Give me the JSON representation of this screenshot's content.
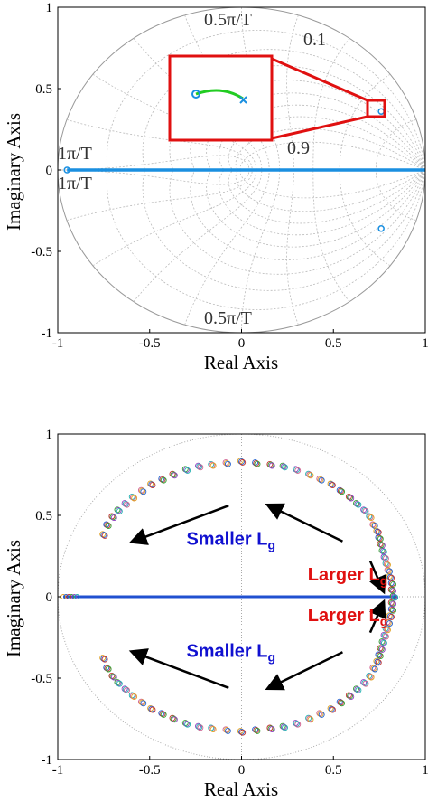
{
  "chart_data": [
    {
      "type": "scatter",
      "xlabel": "Real Axis",
      "ylabel": "Imaginary Axis",
      "xlim": [
        -1,
        1
      ],
      "ylim": [
        -1,
        1
      ],
      "xticks": [
        "-1",
        "-0.5",
        "0",
        "0.5",
        "1"
      ],
      "yticks": [
        "1",
        "0.5",
        "0",
        "-0.5",
        "-1"
      ],
      "grid": "zgrid",
      "annotations": [
        "0.5π/T",
        "0.1",
        "0.9",
        "1π/T",
        "1π/T",
        "0.5π/T"
      ],
      "colors": {
        "poles": "#1a8fe0",
        "zoom_box": "#e01010",
        "zoom_curve": "#22cc22"
      },
      "series": [
        {
          "values": [
            [
              -0.95,
              0
            ],
            [
              0.76,
              0.36
            ],
            [
              0.76,
              -0.36
            ]
          ]
        },
        {
          "values": [
            [
              -0.95,
              0
            ],
            [
              1.0,
              0
            ]
          ]
        }
      ]
    },
    {
      "type": "scatter",
      "xlabel": "Real Axis",
      "ylabel": "Imaginary Axis",
      "xlim": [
        -1,
        1
      ],
      "ylim": [
        -1,
        1
      ],
      "xticks": [
        "-1",
        "-0.5",
        "0",
        "0.5",
        "1"
      ],
      "yticks": [
        "1",
        "0.5",
        "0",
        "-0.5",
        "-1"
      ],
      "grid": "unit circle",
      "colors": {
        "smaller": "#1010d0",
        "larger": "#e01010",
        "axis_line": "#2050d0"
      },
      "arc_points": [
        [
          -0.75,
          0.38
        ],
        [
          -0.73,
          0.44
        ],
        [
          -0.7,
          0.49
        ],
        [
          -0.67,
          0.53
        ],
        [
          -0.63,
          0.57
        ],
        [
          -0.59,
          0.61
        ],
        [
          -0.54,
          0.65
        ],
        [
          -0.49,
          0.69
        ],
        [
          -0.43,
          0.72
        ],
        [
          -0.37,
          0.75
        ],
        [
          -0.3,
          0.78
        ],
        [
          -0.23,
          0.8
        ],
        [
          -0.16,
          0.81
        ],
        [
          -0.08,
          0.82
        ],
        [
          0.0,
          0.83
        ],
        [
          0.08,
          0.82
        ],
        [
          0.16,
          0.81
        ],
        [
          0.23,
          0.8
        ],
        [
          0.3,
          0.78
        ],
        [
          0.37,
          0.75
        ],
        [
          0.43,
          0.72
        ],
        [
          0.49,
          0.69
        ],
        [
          0.54,
          0.65
        ],
        [
          0.59,
          0.61
        ],
        [
          0.63,
          0.57
        ],
        [
          0.67,
          0.53
        ],
        [
          0.7,
          0.49
        ],
        [
          0.72,
          0.44
        ],
        [
          0.74,
          0.4
        ],
        [
          0.75,
          0.36
        ],
        [
          0.76,
          0.32
        ],
        [
          0.77,
          0.28
        ],
        [
          0.78,
          0.24
        ],
        [
          0.79,
          0.2
        ],
        [
          0.8,
          0.16
        ],
        [
          0.81,
          0.12
        ],
        [
          0.82,
          0.08
        ],
        [
          0.82,
          0.04
        ],
        [
          0.83,
          0.0
        ]
      ],
      "annotations": [
        {
          "text": "Smaller L",
          "sub": "g",
          "x": -0.3,
          "y": 0.32,
          "color": "#1010d0"
        },
        {
          "text": "Larger L",
          "sub": "g",
          "x": 0.36,
          "y": 0.1,
          "color": "#e01010"
        },
        {
          "text": "Larger L",
          "sub": "g",
          "x": 0.36,
          "y": -0.15,
          "color": "#e01010"
        },
        {
          "text": "Smaller L",
          "sub": "g",
          "x": -0.3,
          "y": -0.37,
          "color": "#1010d0"
        }
      ],
      "arrows": [
        {
          "from": [
            -0.07,
            0.56
          ],
          "to": [
            -0.59,
            0.34
          ]
        },
        {
          "from": [
            0.55,
            0.34
          ],
          "to": [
            0.15,
            0.56
          ]
        },
        {
          "from": [
            0.7,
            0.22
          ],
          "to": [
            0.77,
            0.04
          ]
        },
        {
          "from": [
            0.7,
            -0.22
          ],
          "to": [
            0.77,
            -0.04
          ]
        },
        {
          "from": [
            0.55,
            -0.34
          ],
          "to": [
            0.15,
            -0.56
          ]
        },
        {
          "from": [
            -0.07,
            -0.56
          ],
          "to": [
            -0.59,
            -0.34
          ]
        }
      ]
    }
  ]
}
